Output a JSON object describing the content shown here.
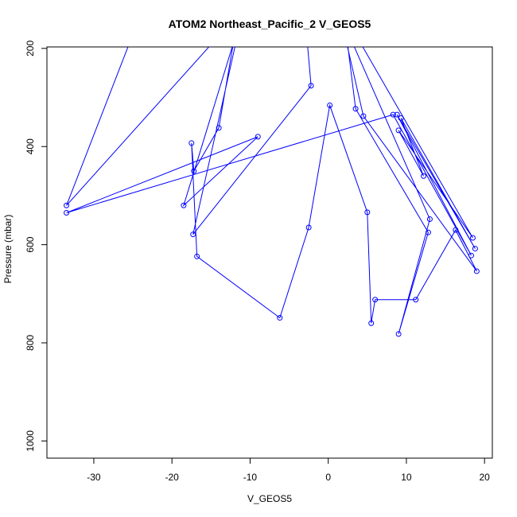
{
  "chart_data": {
    "type": "line",
    "title": "ATOM2 Northeast_Pacific_2 V_GEOS5",
    "xlabel": "V_GEOS5",
    "ylabel": "Pressure (mbar)",
    "xlim": [
      -36,
      21
    ],
    "ylim": [
      1035,
      197
    ],
    "y_reversed": true,
    "x_ticks": [
      -30,
      -20,
      -10,
      0,
      10,
      20
    ],
    "y_ticks": [
      200,
      400,
      600,
      800,
      1000
    ],
    "x_tick_labels": [
      "-30",
      "-20",
      "-10",
      "0",
      "10",
      "20"
    ],
    "y_tick_labels": [
      "200",
      "400",
      "600",
      "800",
      "1000"
    ],
    "grid": false,
    "legend": "none",
    "line_color": "#0000ff",
    "marker": "open-circle",
    "series": [
      {
        "points": [
          {
            "x": -3.0,
            "y": 130
          },
          {
            "x": -2.2,
            "y": 276
          },
          {
            "x": -17.3,
            "y": 579
          },
          {
            "x": -11.0,
            "y": 130
          },
          {
            "x": -18.5,
            "y": 520
          },
          {
            "x": -9.0,
            "y": 380
          },
          {
            "x": -33.5,
            "y": 535
          },
          {
            "x": 8.3,
            "y": 335
          },
          {
            "x": 18.3,
            "y": 622
          },
          {
            "x": 8.8,
            "y": 335
          },
          {
            "x": 18.8,
            "y": 608
          },
          {
            "x": 9.3,
            "y": 342
          },
          {
            "x": 12.2,
            "y": 460
          },
          {
            "x": 9.0,
            "y": 367
          },
          {
            "x": 18.5,
            "y": 586
          },
          {
            "x": 2.0,
            "y": 130
          },
          {
            "x": 3.5,
            "y": 323
          },
          {
            "x": 12.8,
            "y": 575
          },
          {
            "x": 9.0,
            "y": 782
          },
          {
            "x": 13.0,
            "y": 548
          },
          {
            "x": 1.5,
            "y": 130
          },
          {
            "x": 4.5,
            "y": 338
          },
          {
            "x": 19.0,
            "y": 654
          },
          {
            "x": 16.3,
            "y": 570
          },
          {
            "x": 11.2,
            "y": 712
          },
          {
            "x": 6.0,
            "y": 712
          },
          {
            "x": 5.5,
            "y": 760
          },
          {
            "x": 5.0,
            "y": 534
          },
          {
            "x": 0.2,
            "y": 316
          },
          {
            "x": -2.5,
            "y": 565
          },
          {
            "x": -6.2,
            "y": 749
          },
          {
            "x": -16.8,
            "y": 624
          },
          {
            "x": -17.5,
            "y": 393
          },
          {
            "x": -17.2,
            "y": 450
          },
          {
            "x": -14.0,
            "y": 362
          },
          {
            "x": -11.5,
            "y": 130
          },
          {
            "x": -33.5,
            "y": 520
          },
          {
            "x": -24.0,
            "y": 130
          }
        ]
      }
    ]
  }
}
